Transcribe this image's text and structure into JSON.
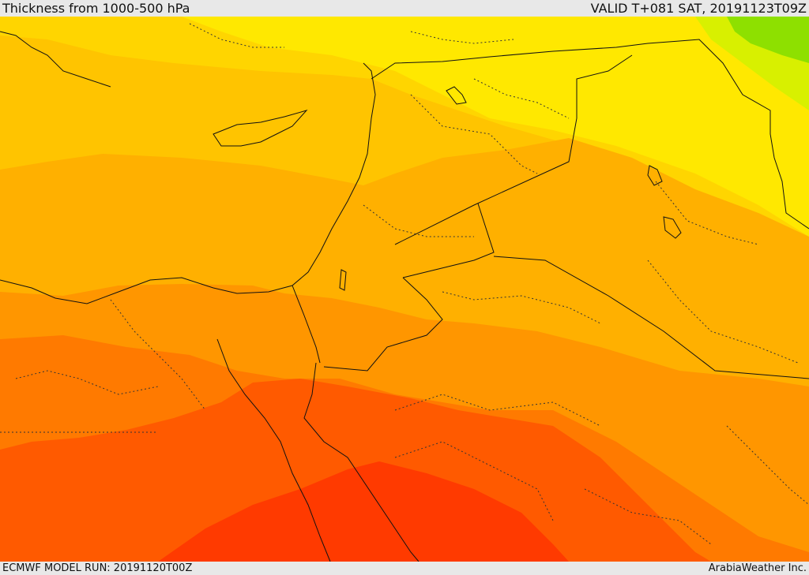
{
  "header": {
    "title": "Thickness from 1000-500 hPa",
    "valid": "VALID T+081 SAT, 20191123T09Z"
  },
  "footer": {
    "model_run": "ECMWF MODEL RUN: 20191120T00Z",
    "credit": "ArabiaWeather Inc."
  },
  "colors": {
    "green": "#8ee000",
    "yellow_green": "#d8f000",
    "yellow": "#ffe800",
    "gold": "#ffd500",
    "light_orange": "#ffc400",
    "orange": "#ffb000",
    "dark_orange": "#ff9600",
    "orange_red": "#ff7a00",
    "red_orange": "#ff5a00",
    "red": "#ff3a00",
    "border_line": "#111111"
  }
}
